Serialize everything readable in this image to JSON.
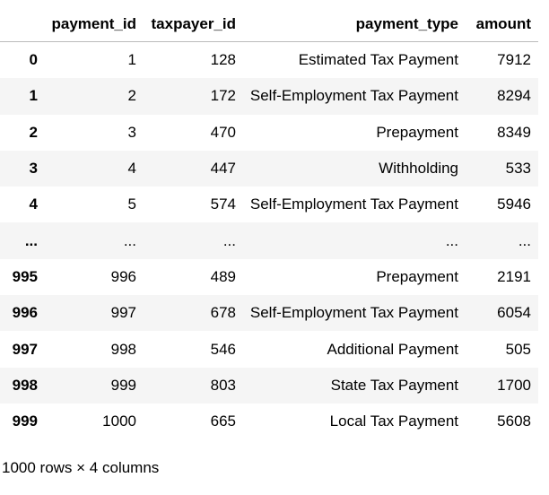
{
  "table": {
    "index_header": "",
    "columns": [
      "payment_id",
      "taxpayer_id",
      "payment_type",
      "amount"
    ],
    "rows": [
      {
        "index": "0",
        "cells": [
          "1",
          "128",
          "Estimated Tax Payment",
          "7912"
        ]
      },
      {
        "index": "1",
        "cells": [
          "2",
          "172",
          "Self-Employment Tax Payment",
          "8294"
        ]
      },
      {
        "index": "2",
        "cells": [
          "3",
          "470",
          "Prepayment",
          "8349"
        ]
      },
      {
        "index": "3",
        "cells": [
          "4",
          "447",
          "Withholding",
          "533"
        ]
      },
      {
        "index": "4",
        "cells": [
          "5",
          "574",
          "Self-Employment Tax Payment",
          "5946"
        ]
      },
      {
        "index": "...",
        "cells": [
          "...",
          "...",
          "...",
          "..."
        ]
      },
      {
        "index": "995",
        "cells": [
          "996",
          "489",
          "Prepayment",
          "2191"
        ]
      },
      {
        "index": "996",
        "cells": [
          "997",
          "678",
          "Self-Employment Tax Payment",
          "6054"
        ]
      },
      {
        "index": "997",
        "cells": [
          "998",
          "546",
          "Additional Payment",
          "505"
        ]
      },
      {
        "index": "998",
        "cells": [
          "999",
          "803",
          "State Tax Payment",
          "1700"
        ]
      },
      {
        "index": "999",
        "cells": [
          "1000",
          "665",
          "Local Tax Payment",
          "5608"
        ]
      }
    ],
    "footer": "1000 rows × 4 columns"
  }
}
